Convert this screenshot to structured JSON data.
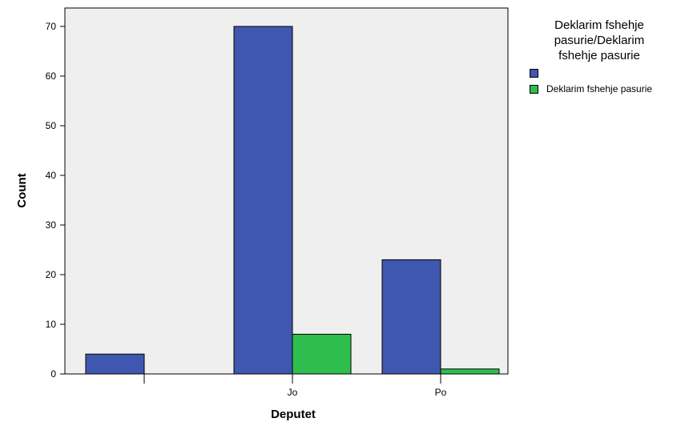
{
  "chart_data": {
    "type": "bar",
    "xlabel": "Deputet",
    "ylabel": "Count",
    "categories": [
      "",
      "Jo",
      "Po"
    ],
    "ylim": [
      0,
      75
    ],
    "yticks": [
      0,
      10,
      20,
      30,
      40,
      50,
      60,
      70
    ],
    "grid": false,
    "legend_position": "right",
    "legend_title": [
      "Deklarim fshehje",
      "pasurie/Deklarim",
      "fshehje pasurie"
    ],
    "series": [
      {
        "name": "",
        "color": "#3F57AE",
        "values": [
          4,
          70,
          23
        ]
      },
      {
        "name": "Deklarim fshehje pasurie",
        "color": "#2FBE4D",
        "values": [
          0,
          8,
          1
        ]
      }
    ],
    "plot_background": "#EFEFEF"
  }
}
